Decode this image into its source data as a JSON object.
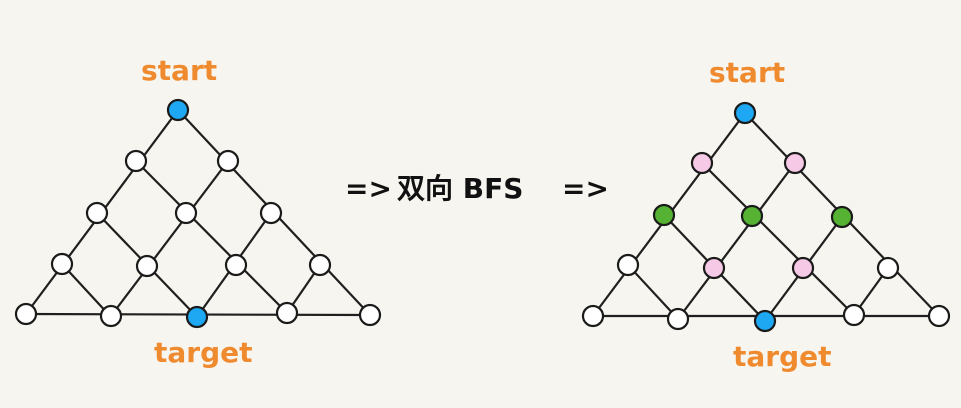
{
  "left_diagram": {
    "start_label": "start",
    "target_label": "target"
  },
  "middle": {
    "arrow_left": "=>",
    "text": "双向 BFS",
    "arrow_right": "=>"
  },
  "right_diagram": {
    "start_label": "start",
    "target_label": "target"
  },
  "colors": {
    "start_target_fill": "#1ea7f2",
    "white_fill": "#ffffff",
    "pink_fill": "#f6c9e6",
    "green_fill": "#55b233",
    "edge": "#1f1f1f",
    "label": "#ef8a2f",
    "text": "#111111",
    "background": "#f7f5ef"
  }
}
